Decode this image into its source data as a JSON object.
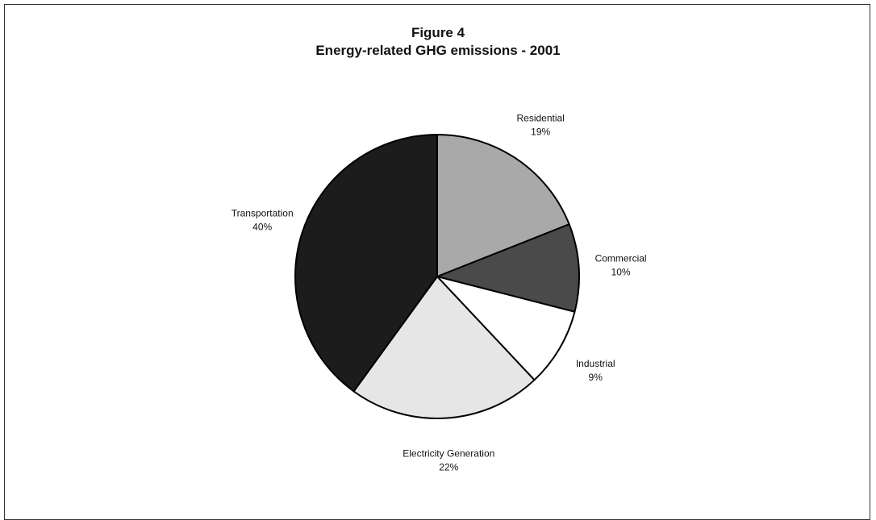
{
  "chart_data": {
    "type": "pie",
    "title": "Figure 4",
    "subtitle": "Energy-related GHG emissions - 2001",
    "slices": [
      {
        "name": "Residential",
        "value": 19,
        "label": "19%",
        "color": "#a9a9a9"
      },
      {
        "name": "Commercial",
        "value": 10,
        "label": "10%",
        "color": "#4a4a4a"
      },
      {
        "name": "Industrial",
        "value": 9,
        "label": "9%",
        "color": "#ffffff"
      },
      {
        "name": "Electricity Generation",
        "value": 22,
        "label": "22%",
        "color": "#e6e6e6"
      },
      {
        "name": "Transportation",
        "value": 40,
        "label": "40%",
        "color": "#1c1c1c"
      }
    ]
  }
}
